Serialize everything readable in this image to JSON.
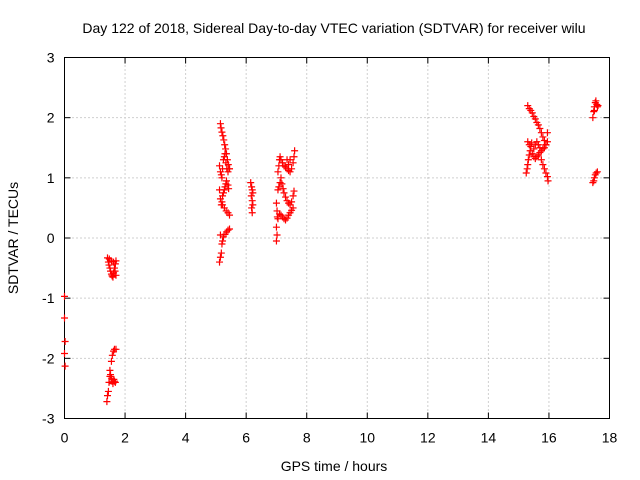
{
  "chart_data": {
    "type": "scatter",
    "title": "Day 122 of 2018, Sidereal Day-to-day VTEC variation (SDTVAR) for receiver wilu",
    "xlabel": "GPS time / hours",
    "ylabel": "SDTVAR / TECUs",
    "xlim": [
      0,
      18
    ],
    "ylim": [
      -3,
      3
    ],
    "xticks": [
      0,
      2,
      4,
      6,
      8,
      10,
      12,
      14,
      16,
      18
    ],
    "yticks": [
      -3,
      -2,
      -1,
      0,
      1,
      2,
      3
    ],
    "grid": true,
    "marker": "+",
    "color": "#ff0000",
    "series": [
      {
        "name": "SDTVAR",
        "points": [
          [
            0.0,
            -0.97
          ],
          [
            0.0,
            -1.33
          ],
          [
            0.02,
            -1.72
          ],
          [
            0.0,
            -1.92
          ],
          [
            0.02,
            -2.13
          ],
          [
            1.42,
            -0.33
          ],
          [
            1.45,
            -0.4
          ],
          [
            1.47,
            -0.45
          ],
          [
            1.5,
            -0.5
          ],
          [
            1.52,
            -0.55
          ],
          [
            1.55,
            -0.6
          ],
          [
            1.57,
            -0.63
          ],
          [
            1.6,
            -0.65
          ],
          [
            1.62,
            -0.58
          ],
          [
            1.65,
            -0.5
          ],
          [
            1.68,
            -0.43
          ],
          [
            1.7,
            -0.38
          ],
          [
            1.48,
            -0.35
          ],
          [
            1.55,
            -0.38
          ],
          [
            1.62,
            -0.4
          ],
          [
            1.67,
            -0.55
          ],
          [
            1.7,
            -0.62
          ],
          [
            1.4,
            -2.72
          ],
          [
            1.42,
            -2.62
          ],
          [
            1.45,
            -2.55
          ],
          [
            1.47,
            -2.4
          ],
          [
            1.5,
            -2.3
          ],
          [
            1.52,
            -2.27
          ],
          [
            1.55,
            -2.33
          ],
          [
            1.57,
            -2.38
          ],
          [
            1.6,
            -2.42
          ],
          [
            1.63,
            -2.35
          ],
          [
            1.65,
            -2.38
          ],
          [
            1.68,
            -2.4
          ],
          [
            1.5,
            -2.2
          ],
          [
            1.55,
            -2.05
          ],
          [
            1.58,
            -1.95
          ],
          [
            1.62,
            -1.88
          ],
          [
            1.65,
            -1.85
          ],
          [
            1.7,
            -1.85
          ],
          [
            5.12,
            -0.4
          ],
          [
            5.15,
            -0.32
          ],
          [
            5.18,
            -0.25
          ],
          [
            5.2,
            -0.1
          ],
          [
            5.22,
            -0.05
          ],
          [
            5.25,
            0.02
          ],
          [
            5.3,
            0.06
          ],
          [
            5.35,
            0.1
          ],
          [
            5.4,
            0.13
          ],
          [
            5.45,
            0.15
          ],
          [
            5.15,
            0.05
          ],
          [
            5.12,
            0.8
          ],
          [
            5.15,
            0.65
          ],
          [
            5.18,
            0.55
          ],
          [
            5.2,
            0.6
          ],
          [
            5.22,
            0.7
          ],
          [
            5.25,
            0.75
          ],
          [
            5.28,
            0.8
          ],
          [
            5.3,
            0.85
          ],
          [
            5.33,
            0.9
          ],
          [
            5.35,
            0.95
          ],
          [
            5.4,
            0.88
          ],
          [
            5.42,
            0.82
          ],
          [
            5.12,
            1.2
          ],
          [
            5.15,
            1.1
          ],
          [
            5.18,
            1.05
          ],
          [
            5.2,
            1.0
          ],
          [
            5.22,
            1.15
          ],
          [
            5.25,
            1.3
          ],
          [
            5.28,
            1.35
          ],
          [
            5.3,
            1.4
          ],
          [
            5.33,
            1.25
          ],
          [
            5.36,
            1.15
          ],
          [
            5.4,
            1.1
          ],
          [
            5.45,
            1.15
          ],
          [
            5.15,
            1.9
          ],
          [
            5.17,
            1.83
          ],
          [
            5.2,
            1.76
          ],
          [
            5.23,
            1.7
          ],
          [
            5.26,
            1.63
          ],
          [
            5.29,
            1.55
          ],
          [
            5.32,
            1.48
          ],
          [
            5.35,
            1.4
          ],
          [
            5.38,
            1.3
          ],
          [
            5.41,
            1.22
          ],
          [
            5.45,
            1.15
          ],
          [
            5.22,
            0.55
          ],
          [
            5.28,
            0.5
          ],
          [
            5.34,
            0.45
          ],
          [
            5.4,
            0.42
          ],
          [
            5.45,
            0.38
          ],
          [
            6.15,
            0.92
          ],
          [
            6.18,
            0.85
          ],
          [
            6.2,
            0.8
          ],
          [
            6.22,
            0.75
          ],
          [
            6.17,
            0.7
          ],
          [
            6.2,
            0.62
          ],
          [
            6.22,
            0.55
          ],
          [
            6.18,
            0.5
          ],
          [
            6.2,
            0.42
          ],
          [
            7.0,
            -0.05
          ],
          [
            7.02,
            0.05
          ],
          [
            7.0,
            0.18
          ],
          [
            7.03,
            0.35
          ],
          [
            7.02,
            0.45
          ],
          [
            7.0,
            0.58
          ],
          [
            7.05,
            0.32
          ],
          [
            7.1,
            0.4
          ],
          [
            7.15,
            0.38
          ],
          [
            7.2,
            0.35
          ],
          [
            7.25,
            0.32
          ],
          [
            7.3,
            0.3
          ],
          [
            7.35,
            0.33
          ],
          [
            7.4,
            0.38
          ],
          [
            7.45,
            0.42
          ],
          [
            7.5,
            0.46
          ],
          [
            7.55,
            0.5
          ],
          [
            7.05,
            0.8
          ],
          [
            7.08,
            0.85
          ],
          [
            7.12,
            0.92
          ],
          [
            7.15,
            1.0
          ],
          [
            7.18,
            0.9
          ],
          [
            7.22,
            0.82
          ],
          [
            7.25,
            0.75
          ],
          [
            7.3,
            0.68
          ],
          [
            7.35,
            0.62
          ],
          [
            7.4,
            0.58
          ],
          [
            7.45,
            0.55
          ],
          [
            7.5,
            0.6
          ],
          [
            7.55,
            0.7
          ],
          [
            7.58,
            0.78
          ],
          [
            7.05,
            1.1
          ],
          [
            7.08,
            1.2
          ],
          [
            7.1,
            1.3
          ],
          [
            7.12,
            1.35
          ],
          [
            7.15,
            1.3
          ],
          [
            7.2,
            1.25
          ],
          [
            7.25,
            1.2
          ],
          [
            7.3,
            1.18
          ],
          [
            7.35,
            1.15
          ],
          [
            7.4,
            1.12
          ],
          [
            7.45,
            1.1
          ],
          [
            7.5,
            1.15
          ],
          [
            7.55,
            1.25
          ],
          [
            7.58,
            1.35
          ],
          [
            7.6,
            1.45
          ],
          [
            7.35,
            1.3
          ],
          [
            7.4,
            1.22
          ],
          [
            7.45,
            1.3
          ],
          [
            15.25,
            1.08
          ],
          [
            15.28,
            1.15
          ],
          [
            15.3,
            1.22
          ],
          [
            15.32,
            1.3
          ],
          [
            15.35,
            1.38
          ],
          [
            15.38,
            1.45
          ],
          [
            15.4,
            1.52
          ],
          [
            15.43,
            1.58
          ],
          [
            15.3,
            1.6
          ],
          [
            15.35,
            1.55
          ],
          [
            15.45,
            1.4
          ],
          [
            15.5,
            1.35
          ],
          [
            15.55,
            1.32
          ],
          [
            15.6,
            1.35
          ],
          [
            15.65,
            1.38
          ],
          [
            15.7,
            1.42
          ],
          [
            15.75,
            1.45
          ],
          [
            15.8,
            1.48
          ],
          [
            15.85,
            1.5
          ],
          [
            15.9,
            1.55
          ],
          [
            15.95,
            1.6
          ],
          [
            15.3,
            2.2
          ],
          [
            15.35,
            2.15
          ],
          [
            15.4,
            2.12
          ],
          [
            15.45,
            2.08
          ],
          [
            15.5,
            2.02
          ],
          [
            15.55,
            1.98
          ],
          [
            15.6,
            1.92
          ],
          [
            15.65,
            1.88
          ],
          [
            15.7,
            1.82
          ],
          [
            15.75,
            1.75
          ],
          [
            15.8,
            1.68
          ],
          [
            15.85,
            1.62
          ],
          [
            15.9,
            1.55
          ],
          [
            15.95,
            1.75
          ],
          [
            15.5,
            1.48
          ],
          [
            15.55,
            1.55
          ],
          [
            15.6,
            1.6
          ],
          [
            15.65,
            1.55
          ],
          [
            15.7,
            1.5
          ],
          [
            15.75,
            1.3
          ],
          [
            15.8,
            1.22
          ],
          [
            15.85,
            1.15
          ],
          [
            15.9,
            1.08
          ],
          [
            15.95,
            1.02
          ],
          [
            15.97,
            0.95
          ],
          [
            17.45,
            2.0
          ],
          [
            17.48,
            2.1
          ],
          [
            17.5,
            2.18
          ],
          [
            17.53,
            2.25
          ],
          [
            17.55,
            2.28
          ],
          [
            17.58,
            2.22
          ],
          [
            17.6,
            2.18
          ],
          [
            17.5,
            2.12
          ],
          [
            17.62,
            2.2
          ],
          [
            17.45,
            0.92
          ],
          [
            17.48,
            0.95
          ],
          [
            17.5,
            1.0
          ],
          [
            17.53,
            1.05
          ],
          [
            17.56,
            1.08
          ],
          [
            17.6,
            1.1
          ]
        ]
      }
    ]
  }
}
